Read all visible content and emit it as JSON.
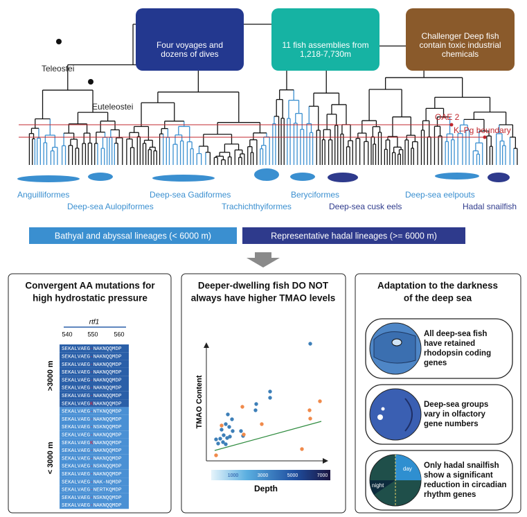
{
  "top_boxes": [
    {
      "lines": [
        "Four voyages and",
        "dozens of dives"
      ],
      "color": "#23388f"
    },
    {
      "lines": [
        "11 fish assemblies from",
        "1,218-7,730m"
      ],
      "color": "#16b3a3"
    },
    {
      "lines": [
        "Challenger Deep fish",
        "contain toxic industrial",
        "chemicals"
      ],
      "color": "#8a5a2b"
    }
  ],
  "tree": {
    "clade_labels": [
      "Teleostei",
      "Euteleostei"
    ],
    "events": [
      "OAE 2",
      "K–Pg boundary"
    ],
    "lineages": [
      {
        "name": "Anguilliformes",
        "color": "#3a8fd0"
      },
      {
        "name": "Deep-sea Aulopiformes",
        "color": "#3a8fd0"
      },
      {
        "name": "Deep-sea Gadiformes",
        "color": "#3a8fd0"
      },
      {
        "name": "Trachichthyiformes",
        "color": "#3a8fd0"
      },
      {
        "name": "Beryciformes",
        "color": "#3a8fd0"
      },
      {
        "name": "Deep-sea cusk eels",
        "color": "#2e3a8c"
      },
      {
        "name": "Deep-sea eelpouts",
        "color": "#3a8fd0"
      },
      {
        "name": "Hadal snailfish",
        "color": "#2e3a8c"
      }
    ]
  },
  "legend": [
    {
      "label": "Bathyal and abyssal lineages (< 6000 m)",
      "color": "#3a8fd0"
    },
    {
      "label": "Representative hadal lineages (>= 6000 m)",
      "color": "#2e3a8c"
    }
  ],
  "panels": [
    {
      "title": [
        "Convergent AA mutations for",
        "high hydrostatic pressure"
      ],
      "gene": "rtf1",
      "positions": [
        540,
        550,
        560
      ],
      "groups": [
        {
          "label": ">3000 m",
          "color": "#2a5fa8",
          "sequences": [
            "SEKALVAEG-NAKNQQMDP",
            "SEKALVAEG-NAKNQQMDP",
            "SEKALVAEG-NAKNQQMDP",
            "SEKALVAEG-NAKNQQMDP",
            "SEKALVAEG-NAKNQQMDP",
            "SEKALVAEG-NAKNQQMDP",
            "SEKALVAEG-NAKNQQMDP",
            "SEKALVAEGKNAKNQQMDP"
          ]
        },
        {
          "label": "< 3000 m",
          "color": "#4a90d4",
          "sequences": [
            "SEKALVAEG-NTKNQQMDP",
            "SEKALVAEG-NAKNQQMDP",
            "SEKALVAEG-NSKNQQMDP",
            "SEKALVAEG-NAKNQQMDP",
            "SEKALVAEGKNAKNQQMDP",
            "SEKALVAEG-NAKNQQMDP",
            "SEKALVAEG-NAKNQQMDP",
            "SEKALVAEG-NSKNQQMDP",
            "SEKALVAEG-NAKNQQMDP",
            "SEKALVAEG-NAK-NQMDP",
            "SEKALVAEG-NERTKQMDP",
            "SEKALVAEG-NSKNQQMDP",
            "SEKALVAEG-NAKNQQMDP"
          ]
        }
      ]
    },
    {
      "title": [
        "Deeper-dwelling fish DO NOT",
        "always have higher TMAO levels"
      ],
      "y_label": "TMAO Content",
      "x_label": "Depth",
      "colorbar_ticks": [
        1000,
        3000,
        5000,
        7000
      ]
    },
    {
      "title": [
        "Adaptation to the darkness",
        "of the deep sea"
      ],
      "items": [
        {
          "lines": [
            "All deep-sea fish",
            "have retained",
            "rhodopsin coding",
            "genes"
          ]
        },
        {
          "lines": [
            "Deep-sea groups",
            "vary in olfactory",
            "gene numbers"
          ]
        },
        {
          "lines": [
            "Only hadal snailfish",
            "show a significant",
            "reduction in circadian",
            "rhythm genes"
          ],
          "icon_labels": [
            "day",
            "night"
          ]
        }
      ]
    }
  ]
}
